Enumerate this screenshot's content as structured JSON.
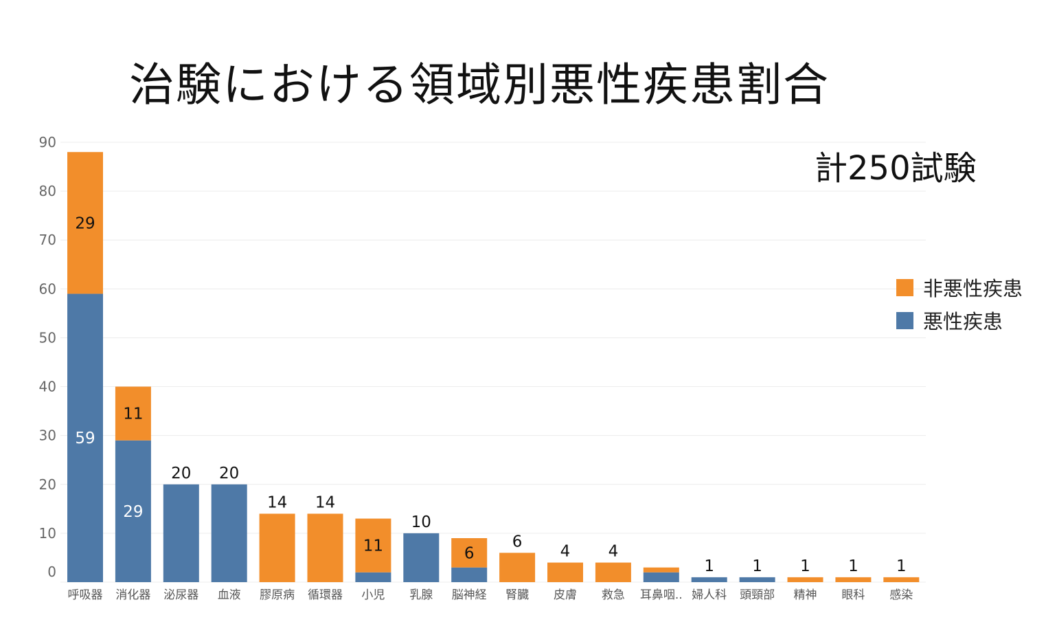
{
  "title": "治験における領域別悪性疾患割合",
  "annotation": "計250試験",
  "colors": {
    "malignant": "#4e79a7",
    "non_malignant": "#f28e2b"
  },
  "legend": [
    {
      "label": "非悪性疾患",
      "series": "non_malignant"
    },
    {
      "label": "悪性疾患",
      "series": "malignant"
    }
  ],
  "chart_data": {
    "type": "bar",
    "stacked": true,
    "title": "治験における領域別悪性疾患割合",
    "categories": [
      "呼吸器",
      "消化器",
      "泌尿器",
      "血液",
      "膠原病",
      "循環器",
      "小児",
      "乳腺",
      "脳神経",
      "腎臓",
      "皮膚",
      "救急",
      "耳鼻咽..",
      "婦人科",
      "頭頸部",
      "精神",
      "眼科",
      "感染"
    ],
    "series": [
      {
        "name": "悪性疾患",
        "key": "malignant",
        "values": [
          59,
          29,
          20,
          20,
          0,
          0,
          2,
          10,
          3,
          0,
          0,
          0,
          2,
          1,
          1,
          0,
          0,
          0
        ]
      },
      {
        "name": "非悪性疾患",
        "key": "non_malignant",
        "values": [
          29,
          11,
          0,
          0,
          14,
          14,
          11,
          0,
          6,
          6,
          4,
          4,
          1,
          0,
          0,
          1,
          1,
          1
        ]
      }
    ],
    "bar_labels": [
      {
        "category": "呼吸器",
        "series": "non_malignant",
        "text": "29",
        "position": "inside"
      },
      {
        "category": "呼吸器",
        "series": "malignant",
        "text": "59",
        "position": "inside"
      },
      {
        "category": "消化器",
        "series": "non_malignant",
        "text": "11",
        "position": "inside"
      },
      {
        "category": "消化器",
        "series": "malignant",
        "text": "29",
        "position": "inside"
      },
      {
        "category": "泌尿器",
        "text": "20",
        "position": "top"
      },
      {
        "category": "血液",
        "text": "20",
        "position": "top"
      },
      {
        "category": "膠原病",
        "text": "14",
        "position": "top"
      },
      {
        "category": "循環器",
        "text": "14",
        "position": "top"
      },
      {
        "category": "小児",
        "series": "non_malignant",
        "text": "11",
        "position": "inside"
      },
      {
        "category": "乳腺",
        "text": "10",
        "position": "top"
      },
      {
        "category": "脳神経",
        "series": "non_malignant",
        "text": "6",
        "position": "inside"
      },
      {
        "category": "腎臓",
        "text": "6",
        "position": "top"
      },
      {
        "category": "皮膚",
        "text": "4",
        "position": "top"
      },
      {
        "category": "救急",
        "text": "4",
        "position": "top"
      },
      {
        "category": "婦人科",
        "text": "1",
        "position": "top"
      },
      {
        "category": "頭頸部",
        "text": "1",
        "position": "top"
      },
      {
        "category": "精神",
        "text": "1",
        "position": "top"
      },
      {
        "category": "眼科",
        "text": "1",
        "position": "top"
      },
      {
        "category": "感染",
        "text": "1",
        "position": "top"
      }
    ],
    "y_ticks": [
      0,
      10,
      20,
      30,
      40,
      50,
      60,
      70,
      80,
      90
    ],
    "ylim": [
      0,
      90
    ],
    "grid": true,
    "legend_position": "right"
  }
}
